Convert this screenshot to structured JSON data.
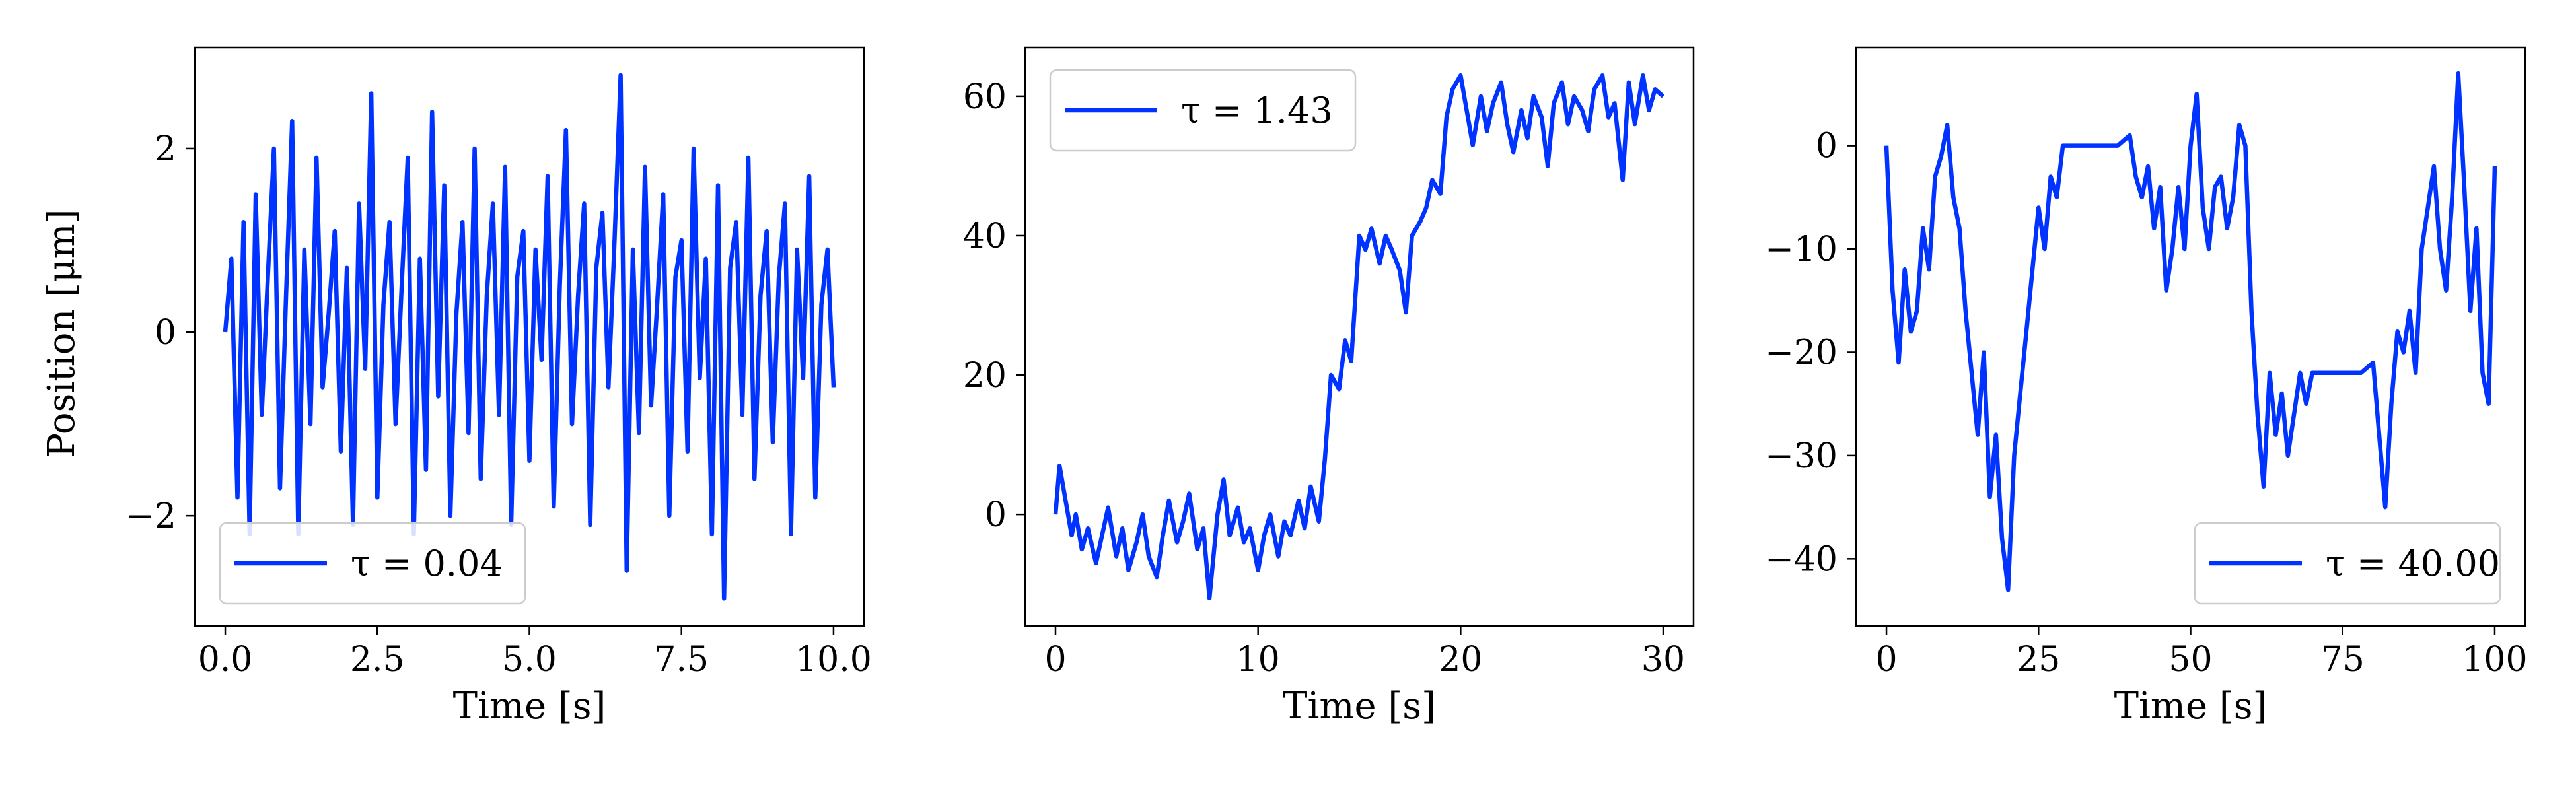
{
  "figure": {
    "ylabel": "Position [μm]",
    "line_color": "#0033ff"
  },
  "chart_data": [
    {
      "type": "line",
      "xlabel": "Time [s]",
      "ylabel": "Position [μm]",
      "xlim": [
        -0.5,
        10.5
      ],
      "ylim": [
        -3.2,
        3.1
      ],
      "xticks": [
        0.0,
        2.5,
        5.0,
        7.5,
        10.0
      ],
      "xtick_labels": [
        "0.0",
        "2.5",
        "5.0",
        "7.5",
        "10.0"
      ],
      "yticks": [
        -2,
        0,
        2
      ],
      "ytick_labels": [
        "−2",
        "0",
        "2"
      ],
      "legend": {
        "label": "τ = 0.04",
        "placement": "lower-left"
      },
      "grid": false,
      "series": [
        {
          "name": "τ = 0.04",
          "color": "#0033ff",
          "x": [
            0.0,
            0.1,
            0.2,
            0.3,
            0.4,
            0.5,
            0.6,
            0.7,
            0.8,
            0.9,
            1.0,
            1.1,
            1.2,
            1.3,
            1.4,
            1.5,
            1.6,
            1.7,
            1.8,
            1.9,
            2.0,
            2.1,
            2.2,
            2.3,
            2.4,
            2.5,
            2.6,
            2.7,
            2.8,
            2.9,
            3.0,
            3.1,
            3.2,
            3.3,
            3.4,
            3.5,
            3.6,
            3.7,
            3.8,
            3.9,
            4.0,
            4.1,
            4.2,
            4.3,
            4.4,
            4.5,
            4.6,
            4.7,
            4.8,
            4.9,
            5.0,
            5.1,
            5.2,
            5.3,
            5.4,
            5.5,
            5.6,
            5.7,
            5.8,
            5.9,
            6.0,
            6.1,
            6.2,
            6.3,
            6.4,
            6.5,
            6.6,
            6.7,
            6.8,
            6.9,
            7.0,
            7.1,
            7.2,
            7.3,
            7.4,
            7.5,
            7.6,
            7.7,
            7.8,
            7.9,
            8.0,
            8.1,
            8.2,
            8.3,
            8.4,
            8.5,
            8.6,
            8.7,
            8.8,
            8.9,
            9.0,
            9.1,
            9.2,
            9.3,
            9.4,
            9.5,
            9.6,
            9.7,
            9.8,
            9.9,
            10.0
          ],
          "y": [
            0.0,
            0.8,
            -1.8,
            1.2,
            -2.2,
            1.5,
            -0.9,
            0.6,
            2.0,
            -1.7,
            0.4,
            2.3,
            -2.2,
            0.9,
            -1.0,
            1.9,
            -0.6,
            0.2,
            1.1,
            -1.3,
            0.7,
            -2.1,
            1.4,
            -0.4,
            2.6,
            -1.8,
            0.3,
            1.2,
            -1.0,
            0.5,
            1.9,
            -2.2,
            0.8,
            -1.5,
            2.4,
            -0.7,
            1.6,
            -2.0,
            0.2,
            1.2,
            -1.1,
            2.0,
            -1.6,
            0.4,
            1.4,
            -0.9,
            1.8,
            -2.1,
            0.6,
            1.1,
            -1.4,
            0.9,
            -0.3,
            1.7,
            -1.9,
            0.5,
            2.2,
            -1.0,
            0.4,
            1.4,
            -2.1,
            0.7,
            1.3,
            -0.6,
            1.0,
            2.8,
            -2.6,
            0.9,
            -1.1,
            1.8,
            -0.8,
            0.3,
            1.5,
            -2.0,
            0.6,
            1.0,
            -1.3,
            2.0,
            -0.5,
            0.8,
            -2.2,
            1.6,
            -2.9,
            0.7,
            1.2,
            -0.9,
            1.9,
            -1.6,
            0.4,
            1.1,
            -1.2,
            0.6,
            1.4,
            -2.2,
            0.9,
            -0.5,
            1.7,
            -1.8,
            0.3,
            0.9,
            -0.6
          ]
        }
      ]
    },
    {
      "type": "line",
      "xlabel": "Time [s]",
      "ylabel": "",
      "xlim": [
        -1.5,
        31.5
      ],
      "ylim": [
        -16,
        67
      ],
      "xticks": [
        0,
        10,
        20,
        30
      ],
      "xtick_labels": [
        "0",
        "10",
        "20",
        "30"
      ],
      "yticks": [
        0,
        20,
        40,
        60
      ],
      "ytick_labels": [
        "0",
        "20",
        "40",
        "60"
      ],
      "legend": {
        "label": "τ = 1.43",
        "placement": "upper-left"
      },
      "grid": false,
      "series": [
        {
          "name": "τ = 1.43",
          "color": "#0033ff",
          "x": [
            0.0,
            0.2,
            0.5,
            0.8,
            1.0,
            1.3,
            1.6,
            2.0,
            2.3,
            2.6,
            3.0,
            3.3,
            3.6,
            4.0,
            4.3,
            4.6,
            5.0,
            5.3,
            5.6,
            6.0,
            6.3,
            6.6,
            7.0,
            7.3,
            7.6,
            8.0,
            8.3,
            8.6,
            9.0,
            9.3,
            9.6,
            10.0,
            10.3,
            10.6,
            11.0,
            11.3,
            11.6,
            12.0,
            12.3,
            12.6,
            13.0,
            13.3,
            13.6,
            14.0,
            14.3,
            14.6,
            15.0,
            15.3,
            15.6,
            16.0,
            16.3,
            16.6,
            17.0,
            17.3,
            17.6,
            18.0,
            18.3,
            18.6,
            19.0,
            19.3,
            19.6,
            20.0,
            20.3,
            20.6,
            21.0,
            21.3,
            21.6,
            22.0,
            22.3,
            22.6,
            23.0,
            23.3,
            23.6,
            24.0,
            24.3,
            24.6,
            25.0,
            25.3,
            25.6,
            26.0,
            26.3,
            26.6,
            27.0,
            27.3,
            27.6,
            28.0,
            28.3,
            28.6,
            29.0,
            29.3,
            29.6,
            30.0
          ],
          "y": [
            0,
            7,
            2,
            -3,
            0,
            -5,
            -2,
            -7,
            -3,
            1,
            -6,
            -2,
            -8,
            -4,
            0,
            -6,
            -9,
            -3,
            2,
            -4,
            -1,
            3,
            -5,
            -2,
            -12,
            0,
            5,
            -3,
            1,
            -4,
            -2,
            -8,
            -3,
            0,
            -6,
            -1,
            -3,
            2,
            -2,
            4,
            -1,
            8,
            20,
            18,
            25,
            22,
            40,
            38,
            41,
            36,
            40,
            38,
            35,
            29,
            40,
            42,
            44,
            48,
            46,
            57,
            61,
            63,
            58,
            53,
            60,
            55,
            59,
            62,
            56,
            52,
            58,
            54,
            60,
            57,
            50,
            59,
            62,
            56,
            60,
            58,
            55,
            61,
            63,
            57,
            59,
            48,
            62,
            56,
            63,
            58,
            61,
            60
          ]
        }
      ]
    },
    {
      "type": "line",
      "xlabel": "Time [s]",
      "ylabel": "",
      "xlim": [
        -5,
        105
      ],
      "ylim": [
        -46.5,
        9.5
      ],
      "xticks": [
        0,
        25,
        50,
        75,
        100
      ],
      "xtick_labels": [
        "0",
        "25",
        "50",
        "75",
        "100"
      ],
      "yticks": [
        -40,
        -30,
        -20,
        -10,
        0
      ],
      "ytick_labels": [
        "−40",
        "−30",
        "−20",
        "−10",
        "0"
      ],
      "legend": {
        "label": "τ = 40.00",
        "placement": "lower-right"
      },
      "grid": false,
      "series": [
        {
          "name": "τ = 40.00",
          "color": "#0033ff",
          "x": [
            0,
            1,
            2,
            3,
            4,
            5,
            6,
            7,
            8,
            9,
            10,
            11,
            12,
            13,
            14,
            15,
            16,
            17,
            18,
            19,
            20,
            21,
            22,
            23,
            24,
            25,
            26,
            27,
            28,
            29,
            30,
            32,
            34,
            36,
            38,
            40,
            41,
            42,
            43,
            44,
            45,
            46,
            47,
            48,
            49,
            50,
            51,
            52,
            53,
            54,
            55,
            56,
            57,
            58,
            59,
            60,
            61,
            62,
            63,
            64,
            65,
            66,
            67,
            68,
            69,
            70,
            72,
            74,
            76,
            78,
            80,
            81,
            82,
            83,
            84,
            85,
            86,
            87,
            88,
            89,
            90,
            91,
            92,
            93,
            94,
            95,
            96,
            97,
            98,
            99,
            100
          ],
          "y": [
            0,
            -14,
            -21,
            -12,
            -18,
            -16,
            -8,
            -12,
            -3,
            -1,
            2,
            -5,
            -8,
            -16,
            -22,
            -28,
            -20,
            -34,
            -28,
            -38,
            -43,
            -30,
            -24,
            -18,
            -12,
            -6,
            -10,
            -3,
            -5,
            0,
            0,
            0,
            0,
            0,
            0,
            1,
            -3,
            -5,
            -2,
            -8,
            -4,
            -14,
            -10,
            -4,
            -10,
            0,
            5,
            -6,
            -10,
            -4,
            -3,
            -8,
            -5,
            2,
            0,
            -16,
            -26,
            -33,
            -22,
            -28,
            -24,
            -30,
            -26,
            -22,
            -25,
            -22,
            -22,
            -22,
            -22,
            -22,
            -21,
            -28,
            -35,
            -25,
            -18,
            -20,
            -16,
            -22,
            -10,
            -6,
            -2,
            -10,
            -14,
            -5,
            7,
            -4,
            -16,
            -8,
            -22,
            -25,
            -2
          ]
        }
      ]
    }
  ]
}
